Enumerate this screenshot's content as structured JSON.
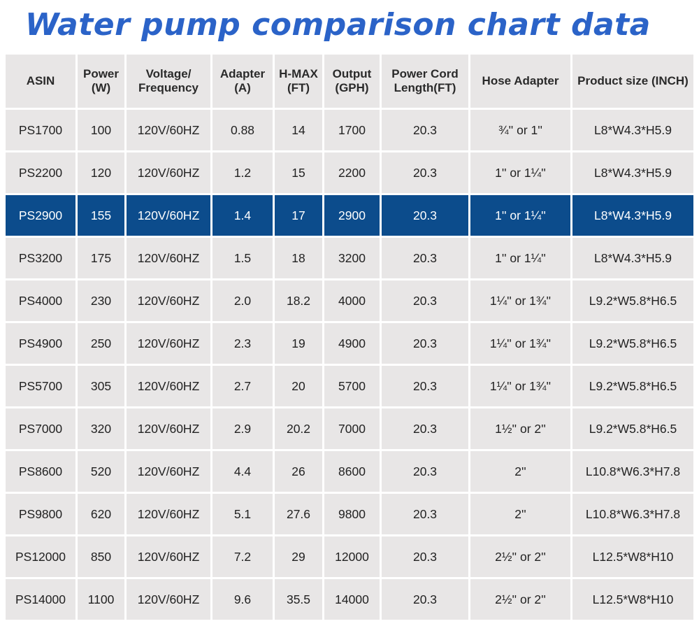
{
  "title": "Water pump comparison chart data",
  "colors": {
    "title": "#2b63c8",
    "highlight_row": "#0c4c8c",
    "cell_bg": "#e8e6e6"
  },
  "chart_data": {
    "type": "table",
    "title": "Water pump comparison chart data",
    "headers": [
      "ASIN",
      "Power (W)",
      "Voltage/ Frequency",
      "Adapter (A)",
      "H-MAX (FT)",
      "Output (GPH)",
      "Power Cord Length(FT)",
      "Hose Adapter",
      "Product size (INCH)"
    ],
    "highlighted_row": 2,
    "rows": [
      [
        "PS1700",
        "100",
        "120V/60HZ",
        "0.88",
        "14",
        "1700",
        "20.3",
        "¾'' or 1''",
        "L8*W4.3*H5.9"
      ],
      [
        "PS2200",
        "120",
        "120V/60HZ",
        "1.2",
        "15",
        "2200",
        "20.3",
        "1'' or 1¼''",
        "L8*W4.3*H5.9"
      ],
      [
        "PS2900",
        "155",
        "120V/60HZ",
        "1.4",
        "17",
        "2900",
        "20.3",
        "1'' or 1¼''",
        "L8*W4.3*H5.9"
      ],
      [
        "PS3200",
        "175",
        "120V/60HZ",
        "1.5",
        "18",
        "3200",
        "20.3",
        "1'' or 1¼''",
        "L8*W4.3*H5.9"
      ],
      [
        "PS4000",
        "230",
        "120V/60HZ",
        "2.0",
        "18.2",
        "4000",
        "20.3",
        "1¼'' or 1¾''",
        "L9.2*W5.8*H6.5"
      ],
      [
        "PS4900",
        "250",
        "120V/60HZ",
        "2.3",
        "19",
        "4900",
        "20.3",
        "1¼'' or 1¾''",
        "L9.2*W5.8*H6.5"
      ],
      [
        "PS5700",
        "305",
        "120V/60HZ",
        "2.7",
        "20",
        "5700",
        "20.3",
        "1¼'' or 1¾''",
        "L9.2*W5.8*H6.5"
      ],
      [
        "PS7000",
        "320",
        "120V/60HZ",
        "2.9",
        "20.2",
        "7000",
        "20.3",
        "1½'' or 2''",
        "L9.2*W5.8*H6.5"
      ],
      [
        "PS8600",
        "520",
        "120V/60HZ",
        "4.4",
        "26",
        "8600",
        "20.3",
        "2''",
        "L10.8*W6.3*H7.8"
      ],
      [
        "PS9800",
        "620",
        "120V/60HZ",
        "5.1",
        "27.6",
        "9800",
        "20.3",
        "2''",
        "L10.8*W6.3*H7.8"
      ],
      [
        "PS12000",
        "850",
        "120V/60HZ",
        "7.2",
        "29",
        "12000",
        "20.3",
        "2½'' or 2''",
        "L12.5*W8*H10"
      ],
      [
        "PS14000",
        "1100",
        "120V/60HZ",
        "9.6",
        "35.5",
        "14000",
        "20.3",
        "2½'' or 2''",
        "L12.5*W8*H10"
      ]
    ]
  }
}
